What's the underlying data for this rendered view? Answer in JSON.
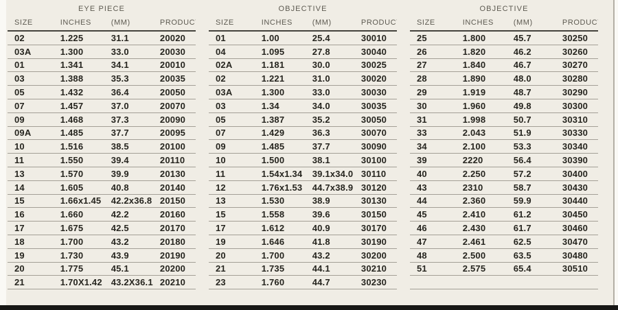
{
  "table": {
    "groups": [
      {
        "title": "EYE PIECE",
        "headers": [
          "SIZE",
          "INCHES",
          "(MM)",
          "PRODUCT#"
        ],
        "rows": [
          [
            "02",
            "1.225",
            "31.1",
            "20020"
          ],
          [
            "03A",
            "1.300",
            "33.0",
            "20030"
          ],
          [
            "01",
            "1.341",
            "34.1",
            "20010"
          ],
          [
            "03",
            "1.388",
            "35.3",
            "20035"
          ],
          [
            "05",
            "1.432",
            "36.4",
            "20050"
          ],
          [
            "07",
            "1.457",
            "37.0",
            "20070"
          ],
          [
            "09",
            "1.468",
            "37.3",
            "20090"
          ],
          [
            "09A",
            "1.485",
            "37.7",
            "20095"
          ],
          [
            "10",
            "1.516",
            "38.5",
            "20100"
          ],
          [
            "11",
            "1.550",
            "39.4",
            "20110"
          ],
          [
            "13",
            "1.570",
            "39.9",
            "20130"
          ],
          [
            "14",
            "1.605",
            "40.8",
            "20140"
          ],
          [
            "15",
            "1.66x1.45",
            "42.2x36.8",
            "20150"
          ],
          [
            "16",
            "1.660",
            "42.2",
            "20160"
          ],
          [
            "17",
            "1.675",
            "42.5",
            "20170"
          ],
          [
            "18",
            "1.700",
            "43.2",
            "20180"
          ],
          [
            "19",
            "1.730",
            "43.9",
            "20190"
          ],
          [
            "20",
            "1.775",
            "45.1",
            "20200"
          ],
          [
            "21",
            "1.70X1.42",
            "43.2X36.1",
            "20210"
          ]
        ]
      },
      {
        "title": "OBJECTIVE",
        "headers": [
          "SIZE",
          "INCHES",
          "(MM)",
          "PRODUCT#"
        ],
        "rows": [
          [
            "01",
            "1.00",
            "25.4",
            "30010"
          ],
          [
            "04",
            "1.095",
            "27.8",
            "30040"
          ],
          [
            "02A",
            "1.181",
            "30.0",
            "30025"
          ],
          [
            "02",
            "1.221",
            "31.0",
            "30020"
          ],
          [
            "03A",
            "1.300",
            "33.0",
            "30030"
          ],
          [
            "03",
            "1.34",
            "34.0",
            "30035"
          ],
          [
            "05",
            "1.387",
            "35.2",
            "30050"
          ],
          [
            "07",
            "1.429",
            "36.3",
            "30070"
          ],
          [
            "09",
            "1.485",
            "37.7",
            "30090"
          ],
          [
            "10",
            "1.500",
            "38.1",
            "30100"
          ],
          [
            "11",
            "1.54x1.34",
            "39.1x34.0",
            "30110"
          ],
          [
            "12",
            "1.76x1.53",
            "44.7x38.9",
            "30120"
          ],
          [
            "13",
            "1.530",
            "38.9",
            "30130"
          ],
          [
            "15",
            "1.558",
            "39.6",
            "30150"
          ],
          [
            "17",
            "1.612",
            "40.9",
            "30170"
          ],
          [
            "19",
            "1.646",
            "41.8",
            "30190"
          ],
          [
            "20",
            "1.700",
            "43.2",
            "30200"
          ],
          [
            "21",
            "1.735",
            "44.1",
            "30210"
          ],
          [
            "23",
            "1.760",
            "44.7",
            "30230"
          ]
        ]
      },
      {
        "title": "OBJECTIVE",
        "headers": [
          "SIZE",
          "INCHES",
          "(MM)",
          "PRODUCT#"
        ],
        "rows": [
          [
            "25",
            "1.800",
            "45.7",
            "30250"
          ],
          [
            "26",
            "1.820",
            "46.2",
            "30260"
          ],
          [
            "27",
            "1.840",
            "46.7",
            "30270"
          ],
          [
            "28",
            "1.890",
            "48.0",
            "30280"
          ],
          [
            "29",
            "1.919",
            "48.7",
            "30290"
          ],
          [
            "30",
            "1.960",
            "49.8",
            "30300"
          ],
          [
            "31",
            "1.998",
            "50.7",
            "30310"
          ],
          [
            "33",
            "2.043",
            "51.9",
            "30330"
          ],
          [
            "34",
            "2.100",
            "53.3",
            "30340"
          ],
          [
            "39",
            "2220",
            "56.4",
            "30390"
          ],
          [
            "40",
            "2.250",
            "57.2",
            "30400"
          ],
          [
            "43",
            "2310",
            "58.7",
            "30430"
          ],
          [
            "44",
            "2.360",
            "59.9",
            "30440"
          ],
          [
            "45",
            "2.410",
            "61.2",
            "30450"
          ],
          [
            "46",
            "2.430",
            "61.7",
            "30460"
          ],
          [
            "47",
            "2.461",
            "62.5",
            "30470"
          ],
          [
            "48",
            "2.500",
            "63.5",
            "30480"
          ],
          [
            "51",
            "2.575",
            "65.4",
            "30510"
          ],
          [
            "",
            "",
            "",
            ""
          ]
        ]
      }
    ]
  },
  "colors": {
    "page_bg": "#f0ede5",
    "margin_bg": "#faf9f5",
    "text": "#26251f",
    "header_text": "#5d5a51",
    "row_line": "#a39f96",
    "header_rule": "#44423c",
    "bottom_bar": "#171715",
    "page_edge_line": "#b3afa5"
  }
}
